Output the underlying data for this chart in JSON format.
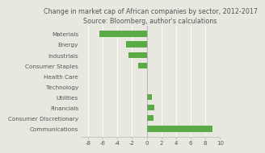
{
  "title": "Change in market cap of African companies by sector, 2012-2017",
  "subtitle": "Source: Bloomberg, author's calculations",
  "categories": [
    "Materials",
    "Energy",
    "Industrials",
    "Consumer Staples",
    "Health Care",
    "Technology",
    "Utilities",
    "Financials",
    "Consumer Discretionary",
    "Communications"
  ],
  "values": [
    -6.5,
    -2.8,
    -2.5,
    -1.2,
    0.0,
    0.0,
    0.7,
    1.0,
    0.9,
    9.0
  ],
  "bar_color": "#5aaa46",
  "xlim": [
    -9,
    10
  ],
  "xticks": [
    -8,
    -6,
    -4,
    -2,
    0,
    2,
    4,
    6,
    8,
    10
  ],
  "background_color": "#e8e8e0",
  "title_fontsize": 5.8,
  "label_fontsize": 5.2,
  "tick_fontsize": 5.0
}
